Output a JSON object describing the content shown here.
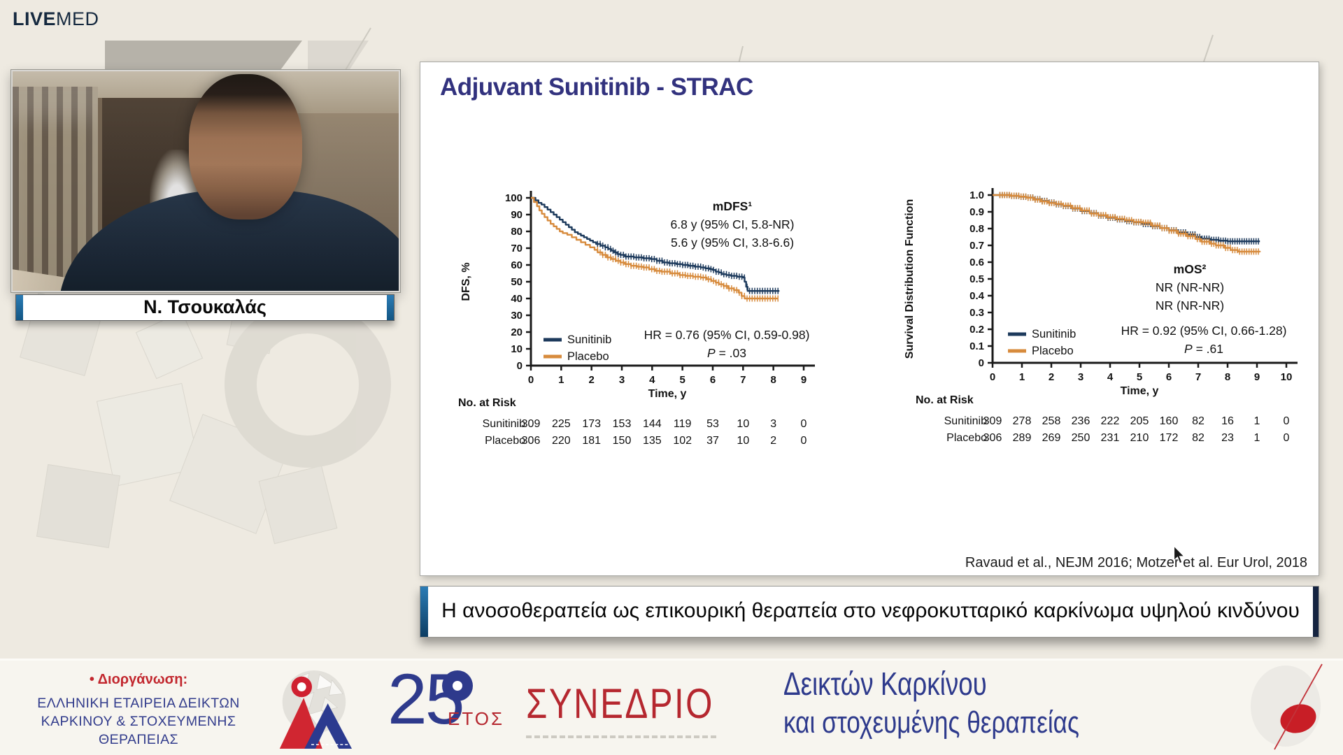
{
  "brand": {
    "live": "LIVE",
    "med": "MED"
  },
  "speaker": {
    "name": "Ν. Τσουκαλάς"
  },
  "slide": {
    "title": "Adjuvant Sunitinib - STRAC",
    "citation": "Ravaud et al., NEJM 2016; Motzer et al. Eur Urol, 2018"
  },
  "banner": {
    "title": "Η ανοσοθεραπεία ως επικουρική θεραπεία στο νεφροκυτταρικό καρκίνωμα υψηλού κινδύνου"
  },
  "footer": {
    "organizer_label": "• Διοργάνωση:",
    "organizer_lines": [
      "ΕΛΛΗΝΙΚΗ ΕΤΑΙΡΕΙΑ ΔΕΙΚΤΩΝ",
      "ΚΑΡΚΙΝΟΥ & ΣΤΟΧΕΥΜΕΝΗΣ",
      "ΘΕΡΑΠΕΙΑΣ"
    ],
    "year_number": "25",
    "year_word": "ΕΤΟΣ",
    "congress_word": "ΣΥΝΕΔΡΙΟ",
    "title_line1": "Δεικτών Καρκίνου",
    "title_line2": "και στοχευμένης θεραπείας"
  },
  "colors": {
    "sunitinib": "#1d3a5c",
    "placebo": "#d78b3d",
    "slide_title_blue": "#32327e",
    "brand_navy": "#15293f",
    "footer_blue": "#2e3a8c",
    "footer_red": "#bf2730",
    "banner_edge_blue": "#1c6fad"
  },
  "chart_data": [
    {
      "type": "line",
      "subtype": "kaplan-meier-step",
      "ylabel": "DFS, %",
      "xlabel": "Time, y",
      "xlim": [
        0,
        9
      ],
      "ylim": [
        0,
        100
      ],
      "xticks": [
        "0",
        "1",
        "2",
        "3",
        "4",
        "5",
        "6",
        "7",
        "8",
        "9"
      ],
      "yticks": [
        "0",
        "10",
        "20",
        "30",
        "40",
        "50",
        "60",
        "70",
        "80",
        "90",
        "100"
      ],
      "annotation": {
        "title": "mDFS¹",
        "lines": [
          "6.8 y (95% CI, 5.8-NR)",
          "5.6 y (95% CI, 3.8-6.6)"
        ]
      },
      "stats": [
        "HR = 0.76 (95% CI, 0.59-0.98)",
        "P = .03"
      ],
      "legend": [
        {
          "name": "Sunitinib",
          "color": "#1d3a5c"
        },
        {
          "name": "Placebo",
          "color": "#d78b3d"
        }
      ],
      "censor_from": 2.2,
      "censor_step": 0.085,
      "series": [
        {
          "name": "Sunitinib",
          "color": "#1d3a5c",
          "points": [
            [
              0,
              100
            ],
            [
              0.15,
              98.5
            ],
            [
              0.25,
              97
            ],
            [
              0.35,
              96
            ],
            [
              0.45,
              94.5
            ],
            [
              0.55,
              93
            ],
            [
              0.65,
              91.5
            ],
            [
              0.75,
              90
            ],
            [
              0.85,
              88.5
            ],
            [
              0.95,
              87
            ],
            [
              1.05,
              85.5
            ],
            [
              1.15,
              84
            ],
            [
              1.25,
              82.5
            ],
            [
              1.35,
              81
            ],
            [
              1.45,
              79.5
            ],
            [
              1.55,
              78.5
            ],
            [
              1.65,
              77.5
            ],
            [
              1.75,
              76.5
            ],
            [
              1.85,
              75.5
            ],
            [
              1.95,
              74.5
            ],
            [
              2.05,
              73.5
            ],
            [
              2.15,
              72.5
            ],
            [
              2.3,
              71.5
            ],
            [
              2.45,
              70.5
            ],
            [
              2.55,
              69.5
            ],
            [
              2.65,
              68.5
            ],
            [
              2.75,
              67.5
            ],
            [
              2.85,
              66.5
            ],
            [
              2.95,
              66
            ],
            [
              3.1,
              65
            ],
            [
              3.4,
              64.5
            ],
            [
              3.7,
              64
            ],
            [
              3.95,
              63.5
            ],
            [
              4.15,
              62.5
            ],
            [
              4.35,
              61.5
            ],
            [
              4.55,
              61
            ],
            [
              4.8,
              60.5
            ],
            [
              5.0,
              60
            ],
            [
              5.2,
              59.5
            ],
            [
              5.4,
              59
            ],
            [
              5.6,
              58.5
            ],
            [
              5.75,
              58
            ],
            [
              5.9,
              57.5
            ],
            [
              6.0,
              57
            ],
            [
              6.1,
              56
            ],
            [
              6.2,
              55.5
            ],
            [
              6.3,
              54.5
            ],
            [
              6.45,
              54
            ],
            [
              6.6,
              53.5
            ],
            [
              6.8,
              53
            ],
            [
              7.0,
              52.5
            ],
            [
              7.05,
              50
            ],
            [
              7.1,
              47
            ],
            [
              7.15,
              44.5
            ],
            [
              8.2,
              44.5
            ]
          ]
        },
        {
          "name": "Placebo",
          "color": "#d78b3d",
          "points": [
            [
              0,
              100
            ],
            [
              0.1,
              97.5
            ],
            [
              0.2,
              95
            ],
            [
              0.28,
              92.5
            ],
            [
              0.36,
              90.5
            ],
            [
              0.45,
              88.5
            ],
            [
              0.55,
              86.5
            ],
            [
              0.65,
              84.5
            ],
            [
              0.75,
              83
            ],
            [
              0.85,
              81.5
            ],
            [
              0.95,
              80
            ],
            [
              1.05,
              79
            ],
            [
              1.2,
              78
            ],
            [
              1.35,
              76.5
            ],
            [
              1.5,
              75
            ],
            [
              1.65,
              73.5
            ],
            [
              1.8,
              72
            ],
            [
              1.95,
              70.5
            ],
            [
              2.1,
              69
            ],
            [
              2.2,
              67.5
            ],
            [
              2.35,
              66
            ],
            [
              2.5,
              64.5
            ],
            [
              2.65,
              63.5
            ],
            [
              2.8,
              62.5
            ],
            [
              2.95,
              61.5
            ],
            [
              3.1,
              60.5
            ],
            [
              3.3,
              59.5
            ],
            [
              3.5,
              59
            ],
            [
              3.7,
              58.5
            ],
            [
              3.9,
              57.5
            ],
            [
              4.1,
              56.5
            ],
            [
              4.3,
              56
            ],
            [
              4.6,
              55
            ],
            [
              4.9,
              54
            ],
            [
              5.1,
              53.5
            ],
            [
              5.35,
              53
            ],
            [
              5.6,
              52.5
            ],
            [
              5.8,
              51.5
            ],
            [
              5.95,
              50.5
            ],
            [
              6.1,
              49.5
            ],
            [
              6.2,
              48.5
            ],
            [
              6.35,
              47.5
            ],
            [
              6.5,
              46
            ],
            [
              6.7,
              45
            ],
            [
              6.85,
              43.5
            ],
            [
              6.95,
              41.5
            ],
            [
              7.05,
              40
            ],
            [
              8.15,
              40
            ]
          ]
        }
      ],
      "risk_table": {
        "label": "No. at Risk",
        "rows": [
          {
            "name": "Sunitinib",
            "values": [
              "309",
              "225",
              "173",
              "153",
              "144",
              "119",
              "53",
              "10",
              "3",
              "0"
            ]
          },
          {
            "name": "Placebo",
            "values": [
              "306",
              "220",
              "181",
              "150",
              "135",
              "102",
              "37",
              "10",
              "2",
              "0"
            ]
          }
        ]
      }
    },
    {
      "type": "line",
      "subtype": "kaplan-meier-step",
      "ylabel": "Survival Distribution Function",
      "xlabel": "Time, y",
      "xlim": [
        0,
        10
      ],
      "ylim": [
        0,
        1.0
      ],
      "xticks": [
        "0",
        "1",
        "2",
        "3",
        "4",
        "5",
        "6",
        "7",
        "8",
        "9",
        "10"
      ],
      "yticks": [
        "0",
        "0.1",
        "0.2",
        "0.3",
        "0.4",
        "0.5",
        "0.6",
        "0.7",
        "0.8",
        "0.9",
        "1.0"
      ],
      "annotation": {
        "title": "mOS²",
        "lines": [
          "NR (NR-NR)",
          "NR (NR-NR)"
        ]
      },
      "stats": [
        "HR = 0.92 (95% CI, 0.66-1.28)",
        "P = .61"
      ],
      "legend": [
        {
          "name": "Sunitinib",
          "color": "#1d3a5c"
        },
        {
          "name": "Placebo",
          "color": "#d78b3d"
        }
      ],
      "censor_from": 0.25,
      "censor_step": 0.08,
      "series": [
        {
          "name": "Sunitinib",
          "color": "#1d3a5c",
          "points": [
            [
              0,
              1.0
            ],
            [
              0.6,
              0.995
            ],
            [
              0.9,
              0.99
            ],
            [
              1.15,
              0.985
            ],
            [
              1.4,
              0.975
            ],
            [
              1.65,
              0.965
            ],
            [
              1.9,
              0.955
            ],
            [
              2.15,
              0.945
            ],
            [
              2.4,
              0.935
            ],
            [
              2.7,
              0.92
            ],
            [
              3.0,
              0.905
            ],
            [
              3.3,
              0.892
            ],
            [
              3.6,
              0.878
            ],
            [
              3.9,
              0.865
            ],
            [
              4.2,
              0.855
            ],
            [
              4.5,
              0.845
            ],
            [
              4.8,
              0.838
            ],
            [
              5.1,
              0.828
            ],
            [
              5.4,
              0.815
            ],
            [
              5.7,
              0.803
            ],
            [
              6.0,
              0.79
            ],
            [
              6.3,
              0.777
            ],
            [
              6.6,
              0.765
            ],
            [
              6.9,
              0.75
            ],
            [
              7.1,
              0.74
            ],
            [
              7.4,
              0.733
            ],
            [
              7.7,
              0.728
            ],
            [
              8.0,
              0.724
            ],
            [
              9.1,
              0.724
            ]
          ]
        },
        {
          "name": "Placebo",
          "color": "#d78b3d",
          "points": [
            [
              0,
              1.0
            ],
            [
              0.6,
              0.996
            ],
            [
              0.9,
              0.991
            ],
            [
              1.15,
              0.984
            ],
            [
              1.4,
              0.973
            ],
            [
              1.65,
              0.962
            ],
            [
              1.9,
              0.953
            ],
            [
              2.15,
              0.947
            ],
            [
              2.4,
              0.937
            ],
            [
              2.7,
              0.922
            ],
            [
              3.0,
              0.908
            ],
            [
              3.3,
              0.89
            ],
            [
              3.6,
              0.88
            ],
            [
              3.9,
              0.868
            ],
            [
              4.2,
              0.858
            ],
            [
              4.5,
              0.85
            ],
            [
              4.8,
              0.84
            ],
            [
              5.1,
              0.835
            ],
            [
              5.4,
              0.818
            ],
            [
              5.7,
              0.803
            ],
            [
              6.0,
              0.788
            ],
            [
              6.3,
              0.77
            ],
            [
              6.6,
              0.755
            ],
            [
              6.9,
              0.738
            ],
            [
              7.1,
              0.722
            ],
            [
              7.4,
              0.71
            ],
            [
              7.6,
              0.7
            ],
            [
              7.9,
              0.685
            ],
            [
              8.1,
              0.672
            ],
            [
              8.35,
              0.663
            ],
            [
              9.1,
              0.66
            ]
          ]
        }
      ],
      "risk_table": {
        "label": "No. at Risk",
        "rows": [
          {
            "name": "Sunitinib",
            "values": [
              "309",
              "278",
              "258",
              "236",
              "222",
              "205",
              "160",
              "82",
              "16",
              "1",
              "0"
            ]
          },
          {
            "name": "Placebo",
            "values": [
              "306",
              "289",
              "269",
              "250",
              "231",
              "210",
              "172",
              "82",
              "23",
              "1",
              "0"
            ]
          }
        ]
      }
    }
  ]
}
